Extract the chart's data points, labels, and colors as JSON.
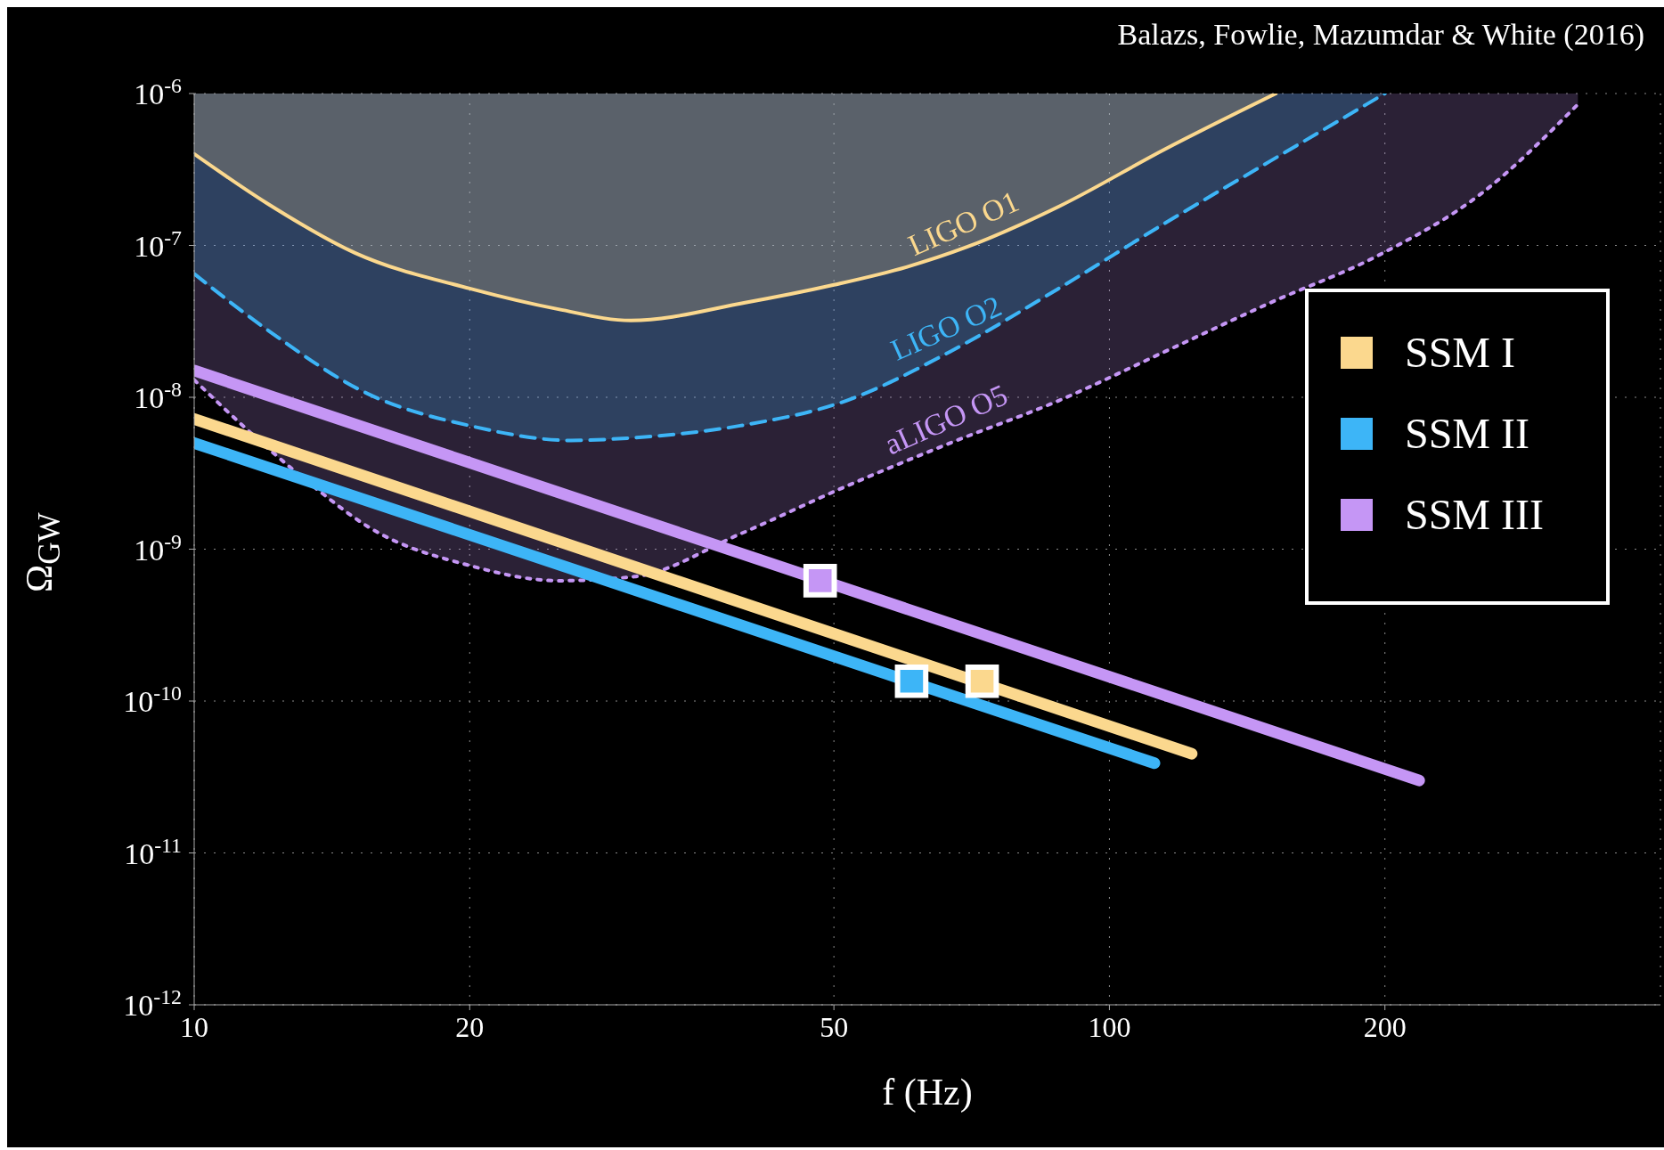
{
  "chart_data": {
    "type": "line",
    "xlabel": "f (Hz)",
    "ylabel": "Ω$_{GW}$",
    "annotations": [
      "Balazs, Fowlie, Mazumdar & White (2016)"
    ],
    "log": "xy",
    "grid": true,
    "legend": "right",
    "xlim": [
      10,
      400
    ],
    "xticks": [
      10,
      20,
      50,
      100,
      200
    ],
    "ylim": [
      1e-12,
      1e-06
    ],
    "yticks": [
      {
        "value": 1e-12,
        "label": "10$^{-12}$"
      },
      {
        "value": 1e-11,
        "label": "10$^{-11}$"
      },
      {
        "value": 1e-10,
        "label": "10$^{-10}$"
      },
      {
        "value": 1e-09,
        "label": "10$^{-9}$"
      },
      {
        "value": 1e-08,
        "label": "10$^{-8}$"
      },
      {
        "value": 1e-07,
        "label": "10$^{-7}$"
      },
      {
        "value": 1e-06,
        "label": "10$^{-6}$"
      }
    ],
    "series": [
      {
        "name": "aLIGO O5",
        "color": "#c596f5",
        "line_style": "dotted",
        "x": [
          10,
          12,
          13.6,
          15.5,
          20,
          25,
          30.3,
          39.5,
          51.6,
          67,
          88,
          115,
          150,
          196,
          255,
          325
        ],
        "values": [
          1.3e-08,
          4.7e-09,
          2.5e-09,
          1.4e-09,
          7.8e-10,
          6.2e-10,
          6.6e-10,
          1.26e-09,
          2.6e-09,
          5e-09,
          9.5e-09,
          2e-08,
          4.2e-08,
          8.5e-08,
          2.2e-07,
          8.5e-07
        ]
      },
      {
        "name": "LIGO O2",
        "color": "#3db5f7",
        "line_style": "dashed",
        "x": [
          10,
          12,
          15.5,
          20,
          25.8,
          30,
          39.5,
          51.6,
          67,
          88,
          115,
          150,
          200
        ],
        "values": [
          6.5e-08,
          2.8e-08,
          1.05e-08,
          6.5e-09,
          5.2e-09,
          5.4e-09,
          6.5e-09,
          9.5e-09,
          2e-08,
          5.2e-08,
          1.4e-07,
          3.6e-07,
          1e-06
        ]
      },
      {
        "name": "LIGO O1",
        "color": "#fbd88e",
        "line_style": "solid",
        "x": [
          10,
          12,
          15,
          20,
          25,
          30,
          40,
          50,
          60,
          70,
          88,
          115,
          152
        ],
        "values": [
          4e-07,
          1.9e-07,
          8.9e-08,
          5.2e-08,
          3.8e-08,
          3.2e-08,
          4.2e-08,
          5.5e-08,
          7.2e-08,
          9.8e-08,
          1.8e-07,
          4.3e-07,
          1e-06
        ]
      },
      {
        "name": "SSM I",
        "color": "#fbd88e",
        "x": [
          10,
          123
        ],
        "values": [
          7.2e-09,
          4.5e-11
        ]
      },
      {
        "name": "SSM II",
        "color": "#3db5f7",
        "x": [
          10,
          112
        ],
        "values": [
          5e-09,
          3.9e-11
        ]
      },
      {
        "name": "SSM III",
        "color": "#c596f5",
        "x": [
          10,
          218
        ],
        "values": [
          1.5e-08,
          3e-11
        ]
      },
      {
        "type": "scatter",
        "color": "#fbd88e",
        "marker": "square",
        "x": [
          72.6
        ],
        "values": [
          1.35e-10
        ]
      },
      {
        "type": "scatter",
        "color": "#3db5f7",
        "marker": "square",
        "x": [
          60.8
        ],
        "values": [
          1.35e-10
        ]
      },
      {
        "type": "scatter",
        "color": "#c596f5",
        "marker": "square",
        "x": [
          48.3
        ],
        "values": [
          6.2e-10
        ]
      }
    ]
  }
}
